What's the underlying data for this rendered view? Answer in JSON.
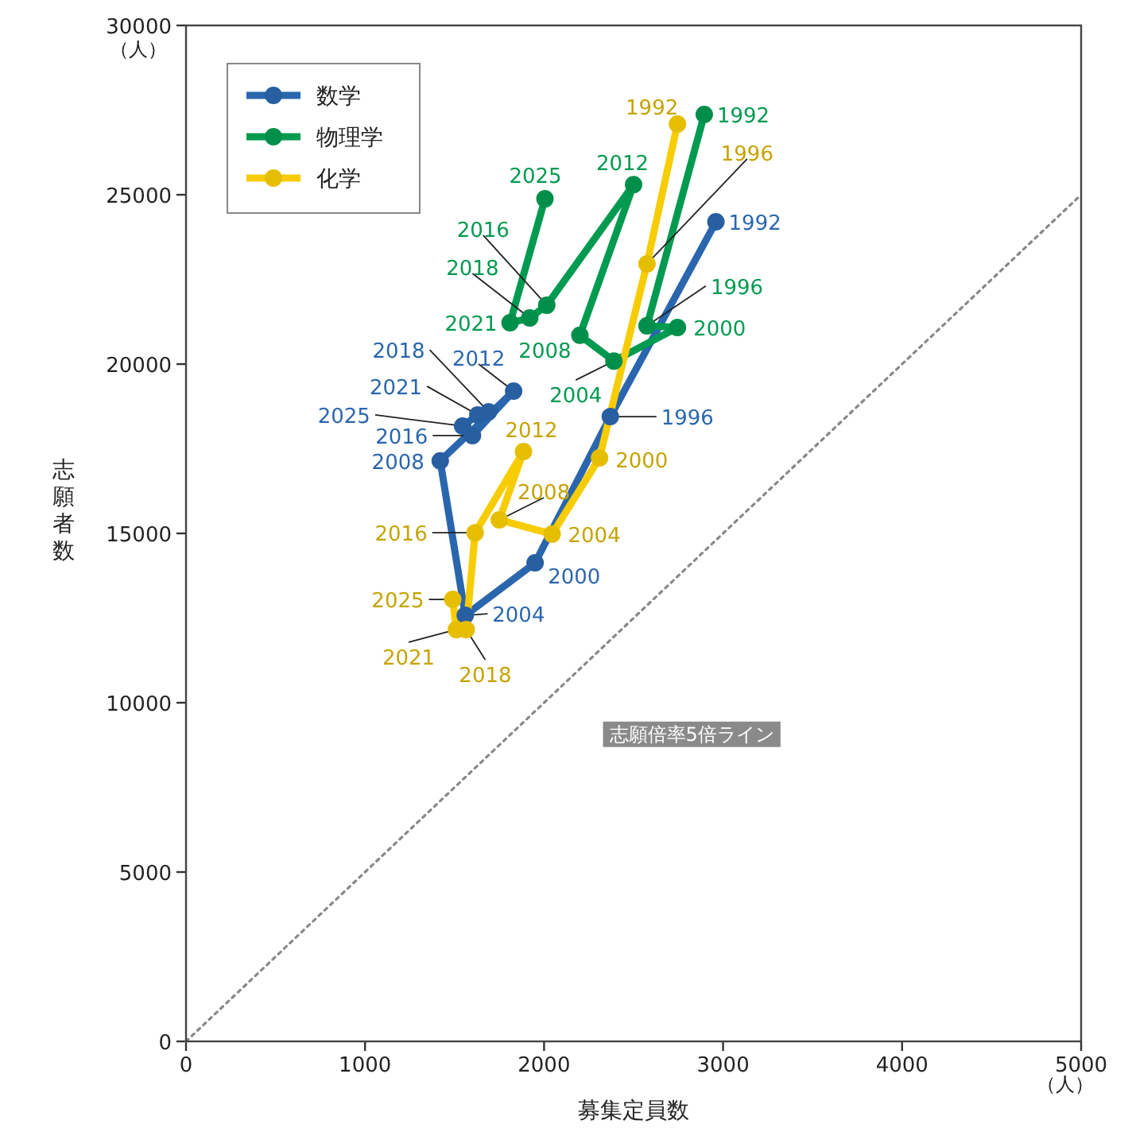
{
  "chart_data": {
    "type": "line",
    "xlabel": "募集定員数",
    "ylabel": "志願者数",
    "xlim": [
      0,
      5000
    ],
    "ylim": [
      0,
      30000
    ],
    "xticks": [
      0,
      1000,
      2000,
      3000,
      4000,
      5000
    ],
    "yticks": [
      0,
      5000,
      10000,
      15000,
      20000,
      25000,
      30000
    ],
    "legend": "top left",
    "marker": "circle",
    "grid": false,
    "annotations": [
      "（人）",
      "（人）",
      "志願倍率5倍ライン",
      {
        "text": "1992",
        "x": 2960,
        "y": 24200
      },
      {
        "text": "1996",
        "x": 2370,
        "y": 18450
      },
      {
        "text": "2000",
        "x": 1950,
        "y": 14130
      },
      {
        "text": "2004",
        "x": 1560,
        "y": 12580
      },
      {
        "text": "2008",
        "x": 1420,
        "y": 17140
      },
      {
        "text": "2012",
        "x": 1830,
        "y": 19200
      },
      {
        "text": "2016",
        "x": 1600,
        "y": 17890
      },
      {
        "text": "2018",
        "x": 1690,
        "y": 18590
      },
      {
        "text": "2021",
        "x": 1630,
        "y": 18500
      },
      {
        "text": "2025",
        "x": 1545,
        "y": 18170
      },
      {
        "text": "1992",
        "x": 2895,
        "y": 27370
      },
      {
        "text": "1996",
        "x": 2575,
        "y": 21130
      },
      {
        "text": "2000",
        "x": 2745,
        "y": 21080
      },
      {
        "text": "2004",
        "x": 2390,
        "y": 20090
      },
      {
        "text": "2008",
        "x": 2200,
        "y": 20850
      },
      {
        "text": "2012",
        "x": 2500,
        "y": 25300
      },
      {
        "text": "2016",
        "x": 2015,
        "y": 21740
      },
      {
        "text": "2018",
        "x": 1920,
        "y": 21360
      },
      {
        "text": "2021",
        "x": 1810,
        "y": 21220
      },
      {
        "text": "2025",
        "x": 2005,
        "y": 24880
      },
      {
        "text": "1992",
        "x": 2745,
        "y": 27090
      },
      {
        "text": "1996",
        "x": 2575,
        "y": 22960
      },
      {
        "text": "2000",
        "x": 2310,
        "y": 17230
      },
      {
        "text": "2004",
        "x": 2045,
        "y": 14980
      },
      {
        "text": "2008",
        "x": 1750,
        "y": 15400
      },
      {
        "text": "2012",
        "x": 1885,
        "y": 17420
      },
      {
        "text": "2016",
        "x": 1615,
        "y": 15020
      },
      {
        "text": "2018",
        "x": 1565,
        "y": 12160
      },
      {
        "text": "2021",
        "x": 1510,
        "y": 12160
      },
      {
        "text": "2025",
        "x": 1490,
        "y": 13050
      }
    ],
    "series": [
      {
        "name": "数学",
        "color": "#2a66ad",
        "x": [
          2960,
          2370,
          1950,
          1560,
          1420,
          1830,
          1600,
          1690,
          1630,
          1545
        ],
        "values": [
          24200,
          18450,
          14130,
          12580,
          17140,
          19200,
          17890,
          18590,
          18500,
          18170
        ]
      },
      {
        "name": "物理学",
        "color": "#009a50",
        "x": [
          2895,
          2575,
          2745,
          2390,
          2200,
          2500,
          2015,
          1920,
          1810,
          2005
        ],
        "values": [
          27370,
          21130,
          21080,
          20090,
          20850,
          25300,
          21740,
          21360,
          21220,
          24880
        ]
      },
      {
        "name": "化学",
        "color": "#f7cc00",
        "x": [
          2745,
          2575,
          2310,
          2045,
          1750,
          1885,
          1615,
          1565,
          1510,
          1490
        ],
        "values": [
          27090,
          22960,
          17230,
          14980,
          15400,
          17420,
          15020,
          12160,
          12160,
          13050
        ]
      },
      {
        "type": "line",
        "color": "#888888",
        "line_style": "dotted",
        "marker": "none",
        "x": [
          0,
          5000
        ],
        "values": [
          0,
          25000
        ]
      }
    ]
  }
}
